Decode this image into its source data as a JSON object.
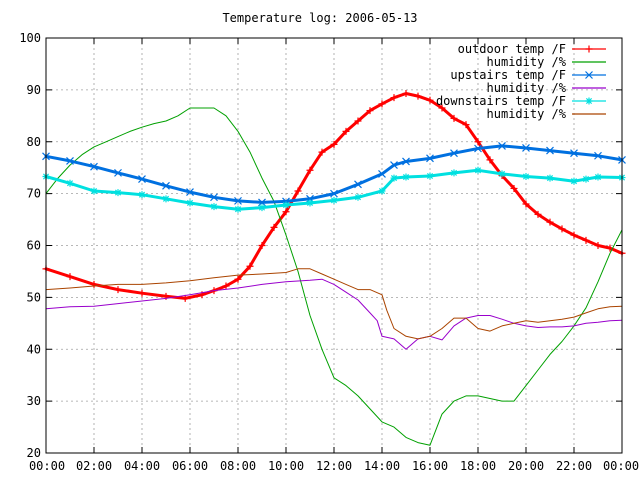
{
  "chart_data": {
    "type": "line",
    "title": "Temperature log: 2006-05-13",
    "xlabel": "",
    "ylabel": "",
    "xlim": [
      0,
      24
    ],
    "ylim": [
      20,
      100
    ],
    "grid": true,
    "legend_position": "top-right",
    "x_ticks": [
      0,
      2,
      4,
      6,
      8,
      10,
      12,
      14,
      16,
      18,
      20,
      22,
      24
    ],
    "x_tick_labels": [
      "00:00",
      "02:00",
      "04:00",
      "06:00",
      "08:00",
      "10:00",
      "12:00",
      "14:00",
      "16:00",
      "18:00",
      "20:00",
      "22:00",
      "00:00"
    ],
    "y_ticks": [
      20,
      30,
      40,
      50,
      60,
      70,
      80,
      90,
      100
    ],
    "y_tick_labels": [
      "20",
      "30",
      "40",
      "50",
      "60",
      "70",
      "80",
      "90",
      "100"
    ],
    "series": [
      {
        "name": "outdoor temp /F",
        "color": "#ff0000",
        "marker": "plus",
        "line_width": 3,
        "x": [
          0,
          1,
          2,
          3,
          4,
          5,
          5.8,
          6.5,
          7,
          7.5,
          8,
          8.5,
          9,
          9.5,
          10,
          10.5,
          11,
          11.5,
          12,
          12.5,
          13,
          13.5,
          14,
          14.5,
          15,
          15.5,
          16,
          16.5,
          17,
          17.5,
          18,
          18.5,
          19,
          19.5,
          20,
          20.5,
          21,
          21.5,
          22,
          22.5,
          23,
          23.5,
          24
        ],
        "y": [
          55.5,
          54,
          52.5,
          51.5,
          50.8,
          50.2,
          49.8,
          50.5,
          51.3,
          52.2,
          53.5,
          56,
          60,
          63.5,
          66.5,
          70.5,
          74.5,
          78,
          79.5,
          82,
          84,
          86,
          87.3,
          88.5,
          89.3,
          88.8,
          88,
          86.5,
          84.5,
          83.3,
          80,
          76.5,
          73.5,
          71,
          68,
          66,
          64.5,
          63.2,
          62,
          61,
          60,
          59.5,
          58.5
        ]
      },
      {
        "name": "humidity /%",
        "color": "#00a000",
        "marker": "none",
        "line_width": 1,
        "x": [
          0,
          0.5,
          1,
          1.5,
          2,
          2.5,
          3,
          3.5,
          4,
          4.5,
          5,
          5.5,
          6,
          6.5,
          7,
          7.5,
          8,
          8.5,
          9,
          9.5,
          10,
          10.5,
          11,
          11.5,
          12,
          12.5,
          13,
          13.5,
          14,
          14.5,
          15,
          15.5,
          16,
          16.5,
          17,
          17.5,
          18,
          18.5,
          19,
          19.5,
          20,
          20.5,
          21,
          21.5,
          22,
          22.5,
          23,
          23.5,
          24
        ],
        "y": [
          70,
          73,
          75.5,
          77.5,
          79,
          80,
          81,
          82,
          82.8,
          83.5,
          84,
          85,
          86.5,
          86.5,
          86.5,
          85,
          82,
          78,
          73,
          68.5,
          62,
          55,
          46.5,
          40,
          34.5,
          33,
          31,
          28.5,
          26,
          25,
          23,
          22,
          21.5,
          27.5,
          30,
          31,
          31,
          30.5,
          30,
          30,
          33,
          36,
          39,
          41.5,
          44.5,
          48,
          53,
          58.5,
          63
        ]
      },
      {
        "name": "upstairs temp /F",
        "color": "#0070e0",
        "marker": "cross",
        "line_width": 3,
        "x": [
          0,
          1,
          2,
          3,
          4,
          5,
          6,
          7,
          8,
          9,
          10,
          11,
          12,
          13,
          14,
          14.5,
          15,
          16,
          17,
          18,
          19,
          20,
          21,
          22,
          23,
          24
        ],
        "y": [
          77.2,
          76.3,
          75.2,
          74,
          72.8,
          71.5,
          70.3,
          69.3,
          68.6,
          68.3,
          68.5,
          69,
          70,
          71.8,
          73.8,
          75.5,
          76.2,
          76.8,
          77.8,
          78.7,
          79.2,
          78.8,
          78.3,
          77.8,
          77.3,
          76.5
        ]
      },
      {
        "name": "humidity /%",
        "color": "#9900cc",
        "marker": "none",
        "line_width": 1,
        "x": [
          0,
          1,
          2,
          3,
          4,
          5,
          6,
          7,
          8,
          9,
          10,
          11,
          11.5,
          12,
          12.5,
          13,
          13.5,
          13.8,
          14,
          14.5,
          15,
          15.5,
          16,
          16.5,
          17,
          17.5,
          18,
          18.5,
          19,
          19.5,
          20,
          20.5,
          21,
          21.5,
          22,
          22.5,
          23,
          23.5,
          24
        ],
        "y": [
          47.8,
          48.2,
          48.3,
          48.8,
          49.3,
          49.8,
          50.5,
          51.3,
          51.8,
          52.5,
          53,
          53.3,
          53.5,
          52.5,
          51,
          49.5,
          47,
          45.5,
          42.5,
          42,
          40,
          42,
          42.5,
          41.8,
          44.5,
          46,
          46.5,
          46.5,
          45.8,
          45,
          44.5,
          44.2,
          44.3,
          44.3,
          44.5,
          45,
          45.2,
          45.5,
          45.6
        ]
      },
      {
        "name": "downstairs temp /F",
        "color": "#00e0e0",
        "marker": "star",
        "line_width": 3,
        "x": [
          0,
          1,
          2,
          3,
          4,
          5,
          6,
          7,
          8,
          9,
          10,
          11,
          12,
          13,
          14,
          14.5,
          15,
          16,
          17,
          18,
          19,
          20,
          21,
          22,
          22.5,
          23,
          24
        ],
        "y": [
          73.3,
          72,
          70.5,
          70.2,
          69.8,
          69,
          68.2,
          67.5,
          67,
          67.3,
          67.8,
          68.2,
          68.7,
          69.3,
          70.5,
          73,
          73.2,
          73.4,
          74,
          74.5,
          73.8,
          73.3,
          73,
          72.4,
          72.8,
          73.2,
          73.1
        ]
      },
      {
        "name": "humidity /%",
        "color": "#aa4400",
        "marker": "none",
        "line_width": 1,
        "x": [
          0,
          1,
          2,
          3,
          4,
          5,
          6,
          7,
          8,
          9,
          10,
          10.5,
          11,
          11.5,
          12,
          12.5,
          13,
          13.5,
          14,
          14.2,
          14.5,
          15,
          15.5,
          16,
          16.5,
          17,
          17.5,
          18,
          18.5,
          19,
          19.5,
          20,
          20.5,
          21,
          21.5,
          22,
          22.5,
          23,
          23.5,
          24
        ],
        "y": [
          51.5,
          51.8,
          52.2,
          52.5,
          52.5,
          52.8,
          53.2,
          53.8,
          54.3,
          54.5,
          54.8,
          55.5,
          55.5,
          54.5,
          53.5,
          52.5,
          51.5,
          51.5,
          50.5,
          47.5,
          44,
          42.5,
          42,
          42.5,
          44,
          46,
          46,
          44,
          43.5,
          44.5,
          45,
          45.5,
          45.2,
          45.5,
          45.8,
          46.2,
          47,
          47.8,
          48.2,
          48.3
        ]
      }
    ]
  }
}
